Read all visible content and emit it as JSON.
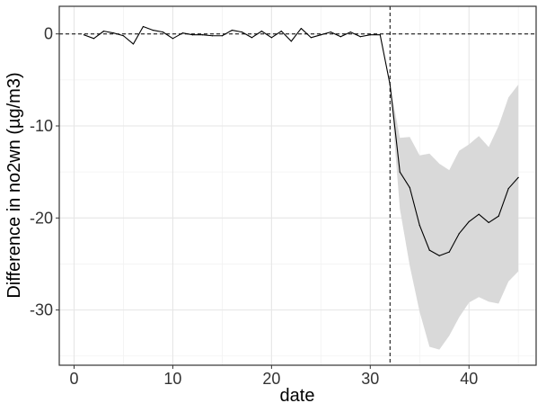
{
  "chart_data": {
    "type": "line",
    "title": "",
    "xlabel": "date",
    "ylabel": "Difference in no2wn (µg/m3)",
    "xlim": [
      -1.5,
      46.8
    ],
    "ylim": [
      -36,
      3
    ],
    "x_ticks": [
      0,
      10,
      20,
      30,
      40
    ],
    "x_tick_labels": [
      "0",
      "10",
      "20",
      "30",
      "40"
    ],
    "y_ticks": [
      0,
      -10,
      -20,
      -30
    ],
    "y_tick_labels": [
      "0",
      "-10",
      "-20",
      "-30"
    ],
    "grid": true,
    "legend": "none",
    "reference_lines": {
      "horizontal_y": 0,
      "vertical_x": 32,
      "style": "dashed"
    },
    "series": [
      {
        "values_x": [
          1,
          2,
          3,
          4,
          5,
          6,
          7,
          8,
          9,
          10,
          11,
          12,
          13,
          14,
          15,
          16,
          17,
          18,
          19,
          20,
          21,
          22,
          23,
          24,
          25,
          26,
          27,
          28,
          29,
          30,
          31,
          32,
          33,
          34,
          35,
          36,
          37,
          38,
          39,
          40,
          41,
          42,
          43,
          44,
          45
        ],
        "values_y": [
          -0.1,
          -0.5,
          0.3,
          0.1,
          -0.2,
          -1.1,
          0.8,
          0.4,
          0.2,
          -0.5,
          0.1,
          -0.1,
          -0.1,
          -0.2,
          -0.2,
          0.4,
          0.2,
          -0.4,
          0.3,
          -0.4,
          0.3,
          -0.8,
          0.6,
          -0.4,
          -0.1,
          0.2,
          -0.3,
          0.2,
          -0.3,
          -0.1,
          -0.1,
          -5.5,
          -15.0,
          -16.7,
          -20.8,
          -23.5,
          -24.1,
          -23.7,
          -21.7,
          -20.4,
          -19.6,
          -20.5,
          -19.8,
          -16.8,
          -15.6
        ],
        "color": "#000000"
      }
    ],
    "ribbon": {
      "color": "#d9d9d9",
      "x": [
        32,
        33,
        34,
        35,
        36,
        37,
        38,
        39,
        40,
        41,
        42,
        43,
        44,
        45
      ],
      "upper": [
        -5.5,
        -11.3,
        -11.2,
        -13.2,
        -13.0,
        -14.1,
        -14.8,
        -12.7,
        -12.0,
        -11.1,
        -12.3,
        -10.0,
        -6.9,
        -5.5
      ],
      "lower": [
        -5.5,
        -19.0,
        -25.2,
        -30.2,
        -34.0,
        -34.3,
        -32.8,
        -30.8,
        -29.2,
        -28.6,
        -29.1,
        -29.3,
        -26.9,
        -25.8
      ]
    }
  }
}
